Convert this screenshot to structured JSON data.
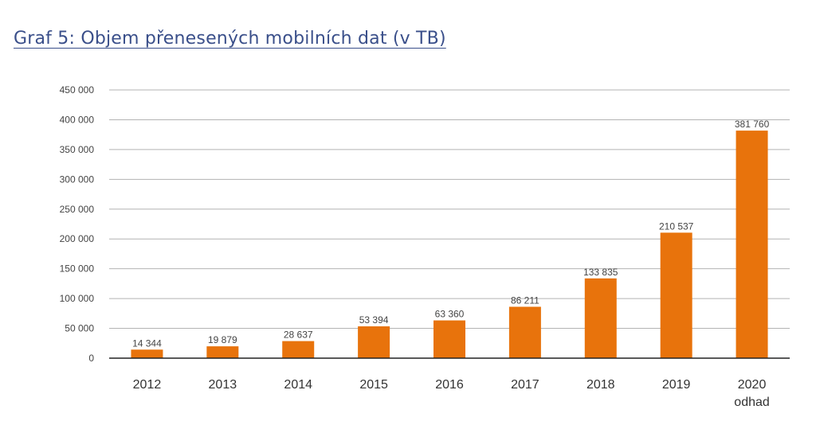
{
  "chart_data": {
    "type": "bar",
    "title": "Graf 5: Objem přenesených mobilních dat (v TB)",
    "categories": [
      "2012",
      "2013",
      "2014",
      "2015",
      "2016",
      "2017",
      "2018",
      "2019",
      "2020"
    ],
    "category_sublabels": [
      "",
      "",
      "",
      "",
      "",
      "",
      "",
      "",
      "odhad"
    ],
    "values": [
      14344,
      19879,
      28637,
      53394,
      63360,
      86211,
      133835,
      210537,
      381760
    ],
    "data_labels": [
      "14 344",
      "19 879",
      "28 637",
      "53 394",
      "63 360",
      "86 211",
      "133 835",
      "210 537",
      "381 760"
    ],
    "yticks": [
      0,
      50000,
      100000,
      150000,
      200000,
      250000,
      300000,
      350000,
      400000,
      450000
    ],
    "ytick_labels": [
      "0",
      "50 000",
      "100 000",
      "150 000",
      "200 000",
      "250 000",
      "300 000",
      "350 000",
      "400 000",
      "450 000"
    ],
    "ylim": [
      0,
      450000
    ],
    "grid": true,
    "legend": "none",
    "xlabel": "",
    "ylabel": "",
    "bar_color": "#e8730c",
    "grid_color": "#b3b3b3",
    "title_color": "#3a4f8a"
  }
}
